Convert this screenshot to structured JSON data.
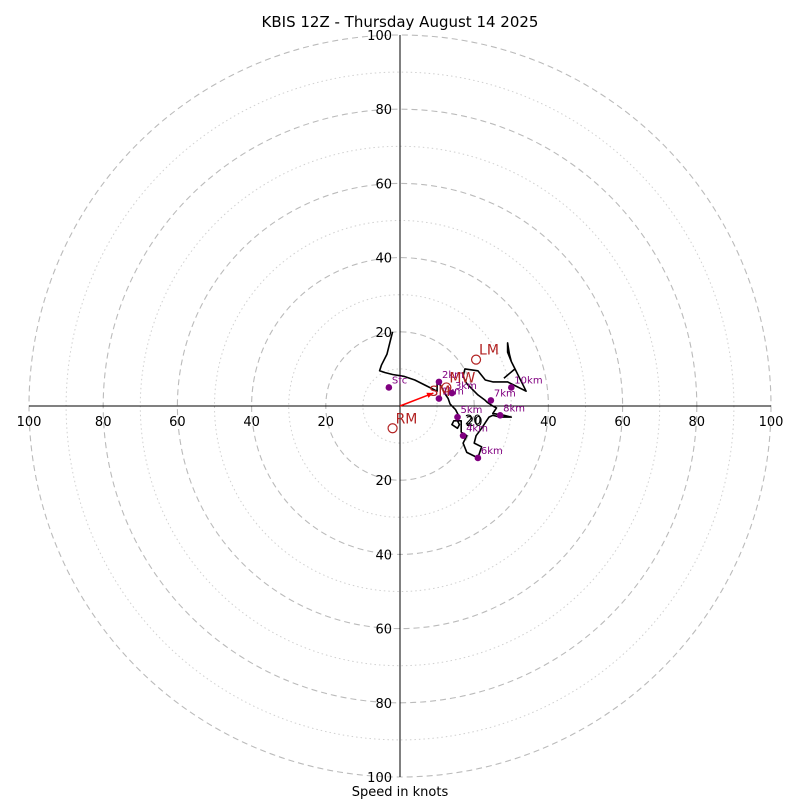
{
  "chart_data": {
    "type": "scatter",
    "title": "KBIS 12Z - Thursday August 14 2025",
    "xlabel": "Speed in knots",
    "xlim": [
      -100,
      100
    ],
    "ylim": [
      -100,
      100
    ],
    "rings_major": [
      20,
      40,
      60,
      80,
      100
    ],
    "rings_minor": [
      10,
      30,
      50,
      70,
      90
    ],
    "tick_labels": [
      "100",
      "80",
      "60",
      "40",
      "20"
    ],
    "hodograph_line": [
      [
        -2,
        20
      ],
      [
        -2.5,
        18
      ],
      [
        -3.5,
        14
      ],
      [
        -5,
        11
      ],
      [
        -5.5,
        9.5
      ],
      [
        -4,
        9
      ],
      [
        -2,
        8.5
      ],
      [
        1,
        8
      ],
      [
        4,
        7
      ],
      [
        7,
        5.5
      ],
      [
        10,
        4
      ],
      [
        10,
        6.5
      ],
      [
        11,
        5.5
      ],
      [
        12,
        3.5
      ],
      [
        13,
        2
      ],
      [
        13.5,
        0.5
      ],
      [
        15,
        -1
      ],
      [
        16,
        -3
      ],
      [
        15.5,
        -4
      ],
      [
        16,
        -5
      ],
      [
        15.5,
        -6
      ],
      [
        14,
        -5
      ],
      [
        14.5,
        -4
      ],
      [
        16.5,
        -4
      ],
      [
        16.5,
        -7
      ],
      [
        18,
        -8
      ],
      [
        17,
        -10
      ],
      [
        18,
        -12.5
      ],
      [
        21,
        -14
      ],
      [
        22,
        -11
      ],
      [
        20,
        -10
      ],
      [
        20.5,
        -8
      ],
      [
        22,
        -6
      ],
      [
        24,
        -3
      ],
      [
        25,
        -2.5
      ],
      [
        27,
        -3
      ],
      [
        30,
        -3
      ],
      [
        28,
        -2.5
      ],
      [
        25,
        -2
      ],
      [
        26,
        -0.5
      ],
      [
        25,
        0
      ],
      [
        23.5,
        1
      ],
      [
        23,
        1.5
      ],
      [
        21,
        3
      ],
      [
        18,
        6
      ],
      [
        17,
        8
      ],
      [
        17.5,
        10
      ],
      [
        21,
        9.5
      ],
      [
        23,
        7
      ],
      [
        25,
        6.5
      ],
      [
        29,
        6.5
      ],
      [
        31,
        5.5
      ],
      [
        34,
        4
      ],
      [
        33,
        6
      ],
      [
        32,
        8
      ],
      [
        31,
        10
      ],
      [
        30,
        12
      ],
      [
        29.5,
        14
      ],
      [
        29,
        17
      ],
      [
        29,
        14.5
      ],
      [
        30,
        12
      ],
      [
        31,
        10
      ],
      [
        28,
        7.5
      ]
    ],
    "km_markers": [
      {
        "label": "Sfc",
        "u": -3,
        "v": 5
      },
      {
        "label": "1km",
        "u": 10.5,
        "v": 2
      },
      {
        "label": "2km",
        "u": 10.5,
        "v": 6.5
      },
      {
        "label": "3km",
        "u": 14,
        "v": 3.5
      },
      {
        "label": "4km",
        "u": 17,
        "v": -8
      },
      {
        "label": "5km",
        "u": 15.5,
        "v": -3
      },
      {
        "label": "6km",
        "u": 21,
        "v": -14
      },
      {
        "label": "7km",
        "u": 24.5,
        "v": 1.5
      },
      {
        "label": "8km",
        "u": 27,
        "v": -2.5
      },
      {
        "label": "10km",
        "u": 30,
        "v": 5
      }
    ],
    "storm_motion": [
      {
        "label": "LM",
        "u": 20.5,
        "v": 12.5
      },
      {
        "label": "RM",
        "u": -2,
        "v": -6
      },
      {
        "label": "MW",
        "u": 12.5,
        "v": 5
      }
    ],
    "shear_vector": {
      "label": "SM",
      "u": 9,
      "v": 3.5
    },
    "center_label": "20",
    "colors": {
      "line": "#000000",
      "markers": "#800080",
      "storm": "#b22222",
      "shear": "#ff0000",
      "grid": "#bbbbbb"
    }
  }
}
